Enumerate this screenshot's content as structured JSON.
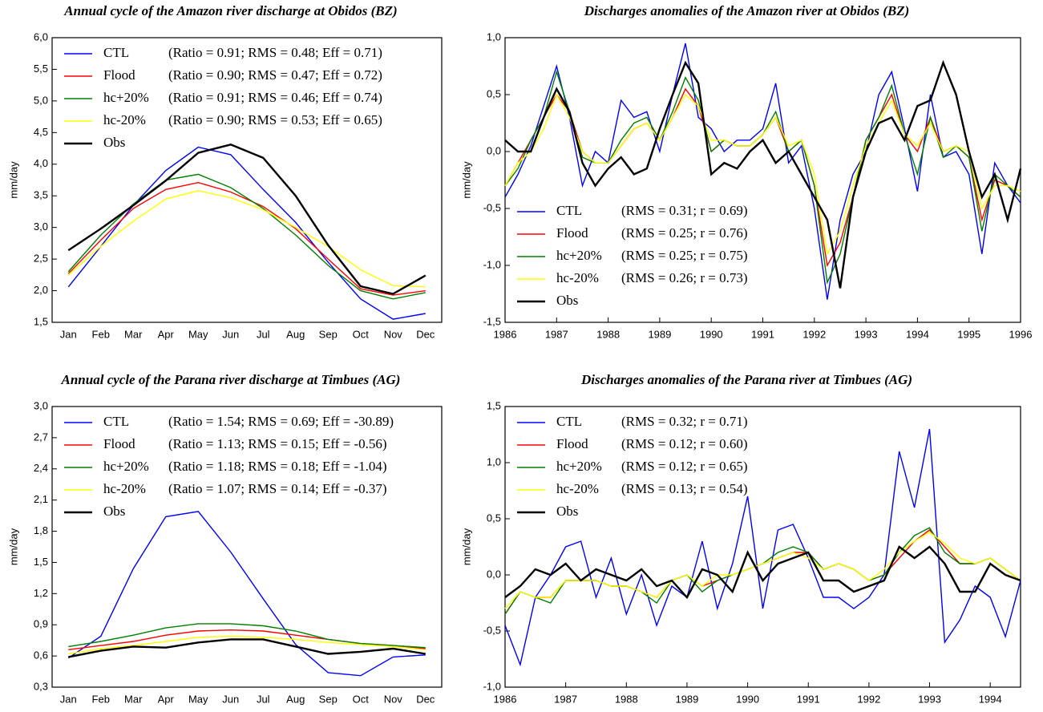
{
  "chart_data": [
    {
      "type": "line",
      "title": "Annual cycle of the Amazon river discharge at Obidos (BZ)",
      "y_label": "mm/day",
      "legend": "upper left",
      "categories": [
        "Jan",
        "Feb",
        "Mar",
        "Apr",
        "May",
        "Jun",
        "Jul",
        "Aug",
        "Sep",
        "Oct",
        "Nov",
        "Dec"
      ],
      "ylim": [
        1.5,
        6.0
      ],
      "yticks": [
        {
          "value": 1.5,
          "label": "1,5"
        },
        {
          "value": 2.0,
          "label": "2,0"
        },
        {
          "value": 2.5,
          "label": "2,5"
        },
        {
          "value": 3.0,
          "label": "3,0"
        },
        {
          "value": 3.5,
          "label": "3,5"
        },
        {
          "value": 4.0,
          "label": "4,0"
        },
        {
          "value": 4.5,
          "label": "4,5"
        },
        {
          "value": 5.0,
          "label": "5,0"
        },
        {
          "value": 5.5,
          "label": "5,5"
        },
        {
          "value": 6.0,
          "label": "6,0"
        }
      ],
      "series": [
        {
          "name": "CTL",
          "stats": "(Ratio = 0.91; RMS = 0.48; Eff = 0.71)",
          "color": "#0000ff",
          "values": [
            2.06,
            2.7,
            3.35,
            3.9,
            4.27,
            4.15,
            3.6,
            3.08,
            2.45,
            1.87,
            1.55,
            1.64
          ]
        },
        {
          "name": "Flood",
          "stats": "(Ratio = 0.90; RMS = 0.47; Eff = 0.72)",
          "color": "#ff0000",
          "values": [
            2.27,
            2.8,
            3.3,
            3.6,
            3.71,
            3.56,
            3.33,
            2.98,
            2.5,
            2.03,
            1.93,
            2.0
          ]
        },
        {
          "name": "hc+20%",
          "stats": "(Ratio = 0.91; RMS = 0.46; Eff = 0.74)",
          "color": "#008000",
          "values": [
            2.3,
            2.88,
            3.37,
            3.75,
            3.84,
            3.63,
            3.3,
            2.88,
            2.4,
            2.0,
            1.87,
            1.97
          ]
        },
        {
          "name": "hc-20%",
          "stats": "(Ratio = 0.90; RMS = 0.53; Eff = 0.65)",
          "color": "#ffff00",
          "values": [
            2.25,
            2.7,
            3.1,
            3.45,
            3.58,
            3.47,
            3.28,
            3.0,
            2.7,
            2.33,
            2.08,
            2.06
          ]
        },
        {
          "name": "Obs",
          "color": "#000000",
          "values": [
            2.64,
            2.98,
            3.35,
            3.74,
            4.18,
            4.31,
            4.1,
            3.5,
            2.72,
            2.07,
            1.95,
            2.24
          ]
        }
      ]
    },
    {
      "type": "line",
      "title": "Discharges anomalies of the Amazon river at Obidos (BZ)",
      "y_label": "mm/day",
      "legend": "lower left",
      "x": [
        1986,
        1986.25,
        1986.5,
        1986.75,
        1987,
        1987.25,
        1987.5,
        1987.75,
        1988,
        1988.25,
        1988.5,
        1988.75,
        1989,
        1989.25,
        1989.5,
        1989.75,
        1990,
        1990.25,
        1990.5,
        1990.75,
        1991,
        1991.25,
        1991.5,
        1991.75,
        1992,
        1992.25,
        1992.5,
        1992.75,
        1993,
        1993.25,
        1993.5,
        1993.75,
        1994,
        1994.25,
        1994.5,
        1994.75,
        1995,
        1995.25,
        1995.5,
        1995.75,
        1996
      ],
      "xlim": [
        1986,
        1996
      ],
      "xticks": [
        1986,
        1987,
        1988,
        1989,
        1990,
        1991,
        1992,
        1993,
        1994,
        1995,
        1996
      ],
      "ylim": [
        -1.5,
        1.0
      ],
      "yticks": [
        {
          "value": -1.5,
          "label": "-1,5"
        },
        {
          "value": -1.0,
          "label": "-1,0"
        },
        {
          "value": -0.5,
          "label": "-0,5"
        },
        {
          "value": 0.0,
          "label": "0,0"
        },
        {
          "value": 0.5,
          "label": "0,5"
        },
        {
          "value": 1.0,
          "label": "1,0"
        }
      ],
      "series": [
        {
          "name": "CTL",
          "stats": "(RMS = 0.31; r = 0.69)",
          "color": "#0000ff",
          "values": [
            -0.4,
            -0.2,
            0.05,
            0.4,
            0.75,
            0.3,
            -0.3,
            0.0,
            -0.1,
            0.45,
            0.3,
            0.35,
            0.0,
            0.5,
            0.95,
            0.3,
            0.2,
            0.0,
            0.1,
            0.1,
            0.2,
            0.6,
            -0.1,
            0.05,
            -0.5,
            -1.3,
            -0.6,
            -0.2,
            0.0,
            0.5,
            0.7,
            0.2,
            -0.35,
            0.5,
            -0.05,
            0.0,
            -0.2,
            -0.9,
            -0.1,
            -0.3,
            -0.45
          ]
        },
        {
          "name": "Flood",
          "stats": "(RMS = 0.25; r = 0.76)",
          "color": "#ff0000",
          "values": [
            -0.3,
            -0.1,
            0.1,
            0.3,
            0.5,
            0.35,
            0.0,
            -0.1,
            -0.1,
            0.05,
            0.2,
            0.25,
            0.1,
            0.3,
            0.55,
            0.4,
            0.0,
            0.1,
            0.05,
            0.05,
            0.15,
            0.3,
            0.0,
            0.1,
            -0.3,
            -1.0,
            -0.8,
            -0.4,
            0.1,
            0.3,
            0.5,
            0.15,
            0.0,
            0.3,
            0.0,
            0.05,
            -0.05,
            -0.6,
            -0.25,
            -0.3,
            -0.4
          ]
        },
        {
          "name": "hc+20%",
          "stats": "(RMS = 0.25; r = 0.75)",
          "color": "#008000",
          "values": [
            -0.3,
            -0.15,
            0.1,
            0.3,
            0.7,
            0.35,
            -0.05,
            -0.1,
            -0.1,
            0.1,
            0.25,
            0.3,
            0.1,
            0.35,
            0.65,
            0.45,
            0.0,
            0.1,
            0.05,
            0.05,
            0.15,
            0.35,
            0.0,
            0.1,
            -0.3,
            -1.15,
            -0.9,
            -0.4,
            0.1,
            0.3,
            0.58,
            0.15,
            -0.2,
            0.3,
            -0.05,
            0.05,
            -0.05,
            -0.7,
            -0.2,
            -0.3,
            -0.4
          ]
        },
        {
          "name": "hc-20%",
          "stats": "(RMS = 0.26; r = 0.73)",
          "color": "#ffff00",
          "values": [
            -0.3,
            -0.1,
            0.0,
            0.2,
            0.5,
            0.3,
            0.0,
            -0.1,
            -0.1,
            0.05,
            0.2,
            0.25,
            0.1,
            0.3,
            0.5,
            0.4,
            0.1,
            0.1,
            0.05,
            0.05,
            0.15,
            0.3,
            0.05,
            0.1,
            -0.2,
            -0.9,
            -0.7,
            -0.3,
            0.05,
            0.25,
            0.45,
            0.15,
            0.05,
            0.25,
            0.0,
            0.05,
            0.0,
            -0.5,
            -0.3,
            -0.3,
            -0.35
          ]
        },
        {
          "name": "Obs",
          "color": "#000000",
          "values": [
            0.1,
            0.0,
            0.0,
            0.3,
            0.55,
            0.35,
            -0.1,
            -0.3,
            -0.15,
            -0.05,
            -0.2,
            -0.15,
            0.2,
            0.5,
            0.78,
            0.6,
            -0.2,
            -0.1,
            -0.15,
            0.0,
            0.1,
            -0.1,
            0.0,
            -0.2,
            -0.4,
            -0.6,
            -1.2,
            -0.4,
            0.0,
            0.25,
            0.3,
            0.1,
            0.4,
            0.45,
            0.78,
            0.5,
            0.0,
            -0.4,
            -0.2,
            -0.6,
            -0.15
          ]
        }
      ]
    },
    {
      "type": "line",
      "title": "Annual cycle of the Parana river discharge at Timbues (AG)",
      "y_label": "mm/day",
      "legend": "upper left",
      "categories": [
        "Jan",
        "Feb",
        "Mar",
        "Apr",
        "May",
        "Jun",
        "Jul",
        "Aug",
        "Sep",
        "Oct",
        "Nov",
        "Dec"
      ],
      "ylim": [
        0.3,
        3.0
      ],
      "yticks": [
        {
          "value": 0.3,
          "label": "0,3"
        },
        {
          "value": 0.6,
          "label": "0,6"
        },
        {
          "value": 0.9,
          "label": "0,9"
        },
        {
          "value": 1.2,
          "label": "1,2"
        },
        {
          "value": 1.5,
          "label": "1,5"
        },
        {
          "value": 1.8,
          "label": "1,8"
        },
        {
          "value": 2.1,
          "label": "2,1"
        },
        {
          "value": 2.4,
          "label": "2,4"
        },
        {
          "value": 2.7,
          "label": "2,7"
        },
        {
          "value": 3.0,
          "label": "3,0"
        }
      ],
      "series": [
        {
          "name": "CTL",
          "stats": "(Ratio = 1.54; RMS = 0.69; Eff = -30.89)",
          "color": "#0000ff",
          "values": [
            0.58,
            0.79,
            1.44,
            1.94,
            1.99,
            1.6,
            1.15,
            0.71,
            0.44,
            0.41,
            0.59,
            0.61
          ]
        },
        {
          "name": "Flood",
          "stats": "(Ratio = 1.13; RMS = 0.15; Eff = -0.56)",
          "color": "#ff0000",
          "values": [
            0.66,
            0.7,
            0.74,
            0.8,
            0.84,
            0.85,
            0.84,
            0.8,
            0.76,
            0.72,
            0.7,
            0.67
          ]
        },
        {
          "name": "hc+20%",
          "stats": "(Ratio = 1.18; RMS = 0.18; Eff = -1.04)",
          "color": "#008000",
          "values": [
            0.69,
            0.74,
            0.8,
            0.87,
            0.91,
            0.91,
            0.89,
            0.84,
            0.76,
            0.72,
            0.7,
            0.68
          ]
        },
        {
          "name": "hc-20%",
          "stats": "(Ratio = 1.07; RMS = 0.14; Eff = -0.37)",
          "color": "#ffff00",
          "values": [
            0.62,
            0.67,
            0.7,
            0.74,
            0.78,
            0.79,
            0.78,
            0.76,
            0.73,
            0.71,
            0.69,
            0.66
          ]
        },
        {
          "name": "Obs",
          "color": "#000000",
          "values": [
            0.59,
            0.65,
            0.69,
            0.68,
            0.73,
            0.76,
            0.76,
            0.69,
            0.62,
            0.64,
            0.67,
            0.62
          ]
        }
      ]
    },
    {
      "type": "line",
      "title": "Discharges anomalies of the Parana river at Timbues (AG)",
      "y_label": "mm/day",
      "legend": "upper left",
      "x": [
        1986,
        1986.25,
        1986.5,
        1986.75,
        1987,
        1987.25,
        1987.5,
        1987.75,
        1988,
        1988.25,
        1988.5,
        1988.75,
        1989,
        1989.25,
        1989.5,
        1989.75,
        1990,
        1990.25,
        1990.5,
        1990.75,
        1991,
        1991.25,
        1991.5,
        1991.75,
        1992,
        1992.25,
        1992.5,
        1992.75,
        1993,
        1993.25,
        1993.5,
        1993.75,
        1994,
        1994.25,
        1994.5
      ],
      "xlim": [
        1986,
        1994.5
      ],
      "xticks": [
        1986,
        1987,
        1988,
        1989,
        1990,
        1991,
        1992,
        1993,
        1994
      ],
      "ylim": [
        -1.0,
        1.5
      ],
      "yticks": [
        {
          "value": -1.0,
          "label": "-1,0"
        },
        {
          "value": -0.5,
          "label": "-0,5"
        },
        {
          "value": 0.0,
          "label": "0,0"
        },
        {
          "value": 0.5,
          "label": "0,5"
        },
        {
          "value": 1.0,
          "label": "1,0"
        },
        {
          "value": 1.5,
          "label": "1,5"
        }
      ],
      "series": [
        {
          "name": "CTL",
          "stats": "(RMS = 0.32; r = 0.71)",
          "color": "#0000ff",
          "values": [
            -0.45,
            -0.8,
            -0.2,
            0.0,
            0.25,
            0.3,
            -0.2,
            0.15,
            -0.35,
            0.0,
            -0.45,
            -0.1,
            -0.2,
            0.3,
            -0.3,
            0.1,
            0.7,
            -0.3,
            0.4,
            0.45,
            0.15,
            -0.2,
            -0.2,
            -0.3,
            -0.2,
            0.0,
            1.1,
            0.6,
            1.3,
            -0.6,
            -0.4,
            -0.1,
            -0.2,
            -0.55,
            -0.05
          ]
        },
        {
          "name": "Flood",
          "stats": "(RMS = 0.12; r = 0.60)",
          "color": "#ff0000",
          "values": [
            -0.35,
            -0.15,
            -0.2,
            -0.2,
            -0.05,
            -0.05,
            -0.05,
            -0.1,
            -0.1,
            -0.15,
            -0.2,
            -0.05,
            0.0,
            -0.1,
            -0.05,
            0.0,
            0.05,
            0.1,
            0.15,
            0.2,
            0.2,
            0.05,
            0.1,
            0.05,
            -0.05,
            0.0,
            0.15,
            0.3,
            0.4,
            0.25,
            0.1,
            0.1,
            0.15,
            0.05,
            -0.05
          ]
        },
        {
          "name": "hc+20%",
          "stats": "(RMS = 0.12; r = 0.65)",
          "color": "#008000",
          "values": [
            -0.35,
            -0.15,
            -0.2,
            -0.25,
            -0.05,
            -0.05,
            -0.05,
            -0.1,
            -0.1,
            -0.15,
            -0.25,
            -0.05,
            0.0,
            -0.15,
            -0.05,
            0.0,
            0.05,
            0.1,
            0.2,
            0.25,
            0.2,
            0.05,
            0.1,
            0.05,
            -0.05,
            0.0,
            0.2,
            0.35,
            0.42,
            0.2,
            0.1,
            0.1,
            0.15,
            0.05,
            -0.05
          ]
        },
        {
          "name": "hc-20%",
          "stats": "(RMS = 0.13; r = 0.54)",
          "color": "#ffff00",
          "values": [
            -0.3,
            -0.15,
            -0.2,
            -0.2,
            -0.05,
            -0.05,
            -0.05,
            -0.1,
            -0.1,
            -0.15,
            -0.2,
            -0.05,
            0.0,
            -0.1,
            0.0,
            0.0,
            0.05,
            0.1,
            0.15,
            0.2,
            0.15,
            0.05,
            0.1,
            0.05,
            -0.05,
            0.05,
            0.2,
            0.3,
            0.38,
            0.28,
            0.15,
            0.1,
            0.15,
            0.05,
            -0.05
          ]
        },
        {
          "name": "Obs",
          "color": "#000000",
          "values": [
            -0.2,
            -0.1,
            0.05,
            0.0,
            0.1,
            -0.05,
            0.05,
            0.0,
            -0.05,
            0.05,
            -0.1,
            -0.05,
            -0.2,
            0.05,
            0.0,
            -0.15,
            0.2,
            -0.05,
            0.1,
            0.15,
            0.2,
            -0.05,
            -0.05,
            -0.15,
            -0.1,
            -0.05,
            0.25,
            0.15,
            0.25,
            0.1,
            -0.15,
            -0.15,
            0.1,
            0.0,
            -0.05
          ]
        }
      ]
    }
  ]
}
